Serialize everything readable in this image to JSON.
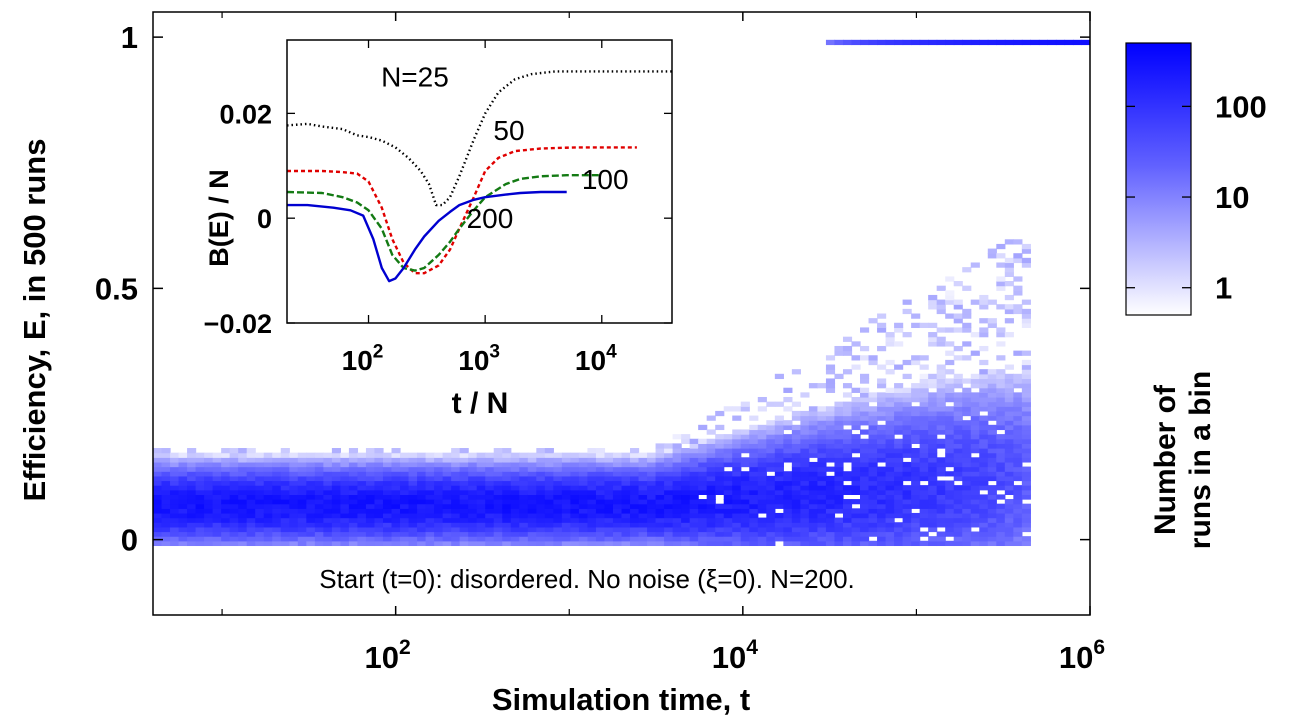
{
  "chart_data": [
    {
      "type": "heatmap",
      "xlabel": "Simulation time, t",
      "ylabel": "Efficiency, E, in 500 runs",
      "x_scale": "log",
      "xlim": [
        4,
        1000000
      ],
      "ylim": [
        -0.15,
        1.05
      ],
      "x_ticks": [
        {
          "value": 100,
          "base": "10",
          "exp": "2"
        },
        {
          "value": 10000,
          "base": "10",
          "exp": "4"
        },
        {
          "value": 1000000,
          "base": "10",
          "exp": "6"
        }
      ],
      "y_ticks": [
        {
          "value": 0,
          "label": "0"
        },
        {
          "value": 0.5,
          "label": "0.5"
        },
        {
          "value": 1,
          "label": "1"
        }
      ],
      "annotation": "Start (t=0): disordered. No noise (ξ=0). N=200.",
      "colorbar": {
        "label_line1": "Number of",
        "label_line2": "runs in a bin",
        "scale": "log",
        "range": [
          0.5,
          500
        ],
        "ticks": [
          {
            "value": 1,
            "label": "1"
          },
          {
            "value": 10,
            "label": "10"
          },
          {
            "value": 100,
            "label": "100"
          }
        ],
        "color_low": "#ffffff",
        "color_high": "#0000ff"
      },
      "density_profile": {
        "early_band": {
          "t_range": [
            4,
            3000
          ],
          "E_center": 0.07,
          "E_spread": 0.05,
          "E_max_sparse": 0.18
        },
        "spread_region": {
          "t_range": [
            3000,
            450000
          ],
          "E_max": 0.58
        },
        "ordered_band": {
          "t_range": [
            30000,
            1000000
          ],
          "E": 0.99
        }
      }
    },
    {
      "type": "line",
      "title": "inset",
      "xlabel": "t / N",
      "ylabel": "B(E) / N",
      "x_scale": "log",
      "xlim": [
        20,
        40000
      ],
      "ylim": [
        -0.02,
        0.034
      ],
      "x_ticks": [
        {
          "value": 100,
          "base": "10",
          "exp": "2"
        },
        {
          "value": 1000,
          "base": "10",
          "exp": "3"
        },
        {
          "value": 10000,
          "base": "10",
          "exp": "4"
        }
      ],
      "y_ticks": [
        {
          "value": -0.02,
          "label": "−0.02"
        },
        {
          "value": 0,
          "label": "0"
        },
        {
          "value": 0.02,
          "label": "0.02"
        }
      ],
      "series": [
        {
          "name": "N=25",
          "color": "#000000",
          "dash": "dotted",
          "x": [
            20,
            30,
            40,
            60,
            80,
            100,
            130,
            170,
            220,
            280,
            330,
            380,
            430,
            500,
            600,
            800,
            1000,
            1300,
            1800,
            2500,
            4000,
            8000,
            20000,
            40000
          ],
          "y": [
            0.0177,
            0.018,
            0.0175,
            0.017,
            0.0158,
            0.0155,
            0.0148,
            0.0135,
            0.0115,
            0.009,
            0.0065,
            0.0025,
            0.0025,
            0.004,
            0.008,
            0.015,
            0.02,
            0.024,
            0.0265,
            0.0275,
            0.028,
            0.028,
            0.028,
            0.028
          ]
        },
        {
          "name": "50",
          "color": "#e00000",
          "dash": "dashed-short",
          "x": [
            20,
            40,
            60,
            80,
            100,
            130,
            160,
            200,
            250,
            300,
            400,
            500,
            600,
            800,
            1000,
            1300,
            1800,
            3000,
            6000,
            12000,
            20000
          ],
          "y": [
            0.009,
            0.009,
            0.0088,
            0.0085,
            0.007,
            0.002,
            -0.004,
            -0.0085,
            -0.0105,
            -0.0105,
            -0.009,
            -0.006,
            -0.002,
            0.004,
            0.009,
            0.0115,
            0.0128,
            0.0133,
            0.0135,
            0.0135,
            0.0135
          ]
        },
        {
          "name": "100",
          "color": "#137a13",
          "dash": "dashed",
          "x": [
            20,
            40,
            60,
            80,
            100,
            130,
            160,
            200,
            250,
            300,
            400,
            500,
            600,
            800,
            1000,
            1500,
            2000,
            3000,
            5000,
            10000
          ],
          "y": [
            0.005,
            0.0048,
            0.004,
            0.003,
            0.0015,
            -0.002,
            -0.007,
            -0.0095,
            -0.01,
            -0.0095,
            -0.007,
            -0.0045,
            -0.002,
            0.0015,
            0.004,
            0.0065,
            0.0075,
            0.008,
            0.0082,
            0.0082
          ]
        },
        {
          "name": "200",
          "color": "#0000d0",
          "dash": "solid",
          "x": [
            20,
            30,
            50,
            70,
            90,
            110,
            130,
            150,
            170,
            200,
            250,
            300,
            400,
            500,
            600,
            800,
            1000,
            1500,
            2000,
            3000,
            5000
          ],
          "y": [
            0.0025,
            0.0025,
            0.002,
            0.0015,
            0.0005,
            -0.004,
            -0.0095,
            -0.012,
            -0.0115,
            -0.0095,
            -0.006,
            -0.0035,
            -0.0005,
            0.0012,
            0.0025,
            0.0035,
            0.004,
            0.0045,
            0.0048,
            0.005,
            0.005
          ]
        }
      ],
      "series_labels": [
        {
          "text": "N=25",
          "x": 250,
          "y": 0.027
        },
        {
          "text": "50",
          "x": 1600,
          "y": 0.0168
        },
        {
          "text": "100",
          "x": 10700,
          "y": 0.0075
        },
        {
          "text": "200",
          "x": 1100,
          "y": 0.0
        }
      ]
    }
  ]
}
